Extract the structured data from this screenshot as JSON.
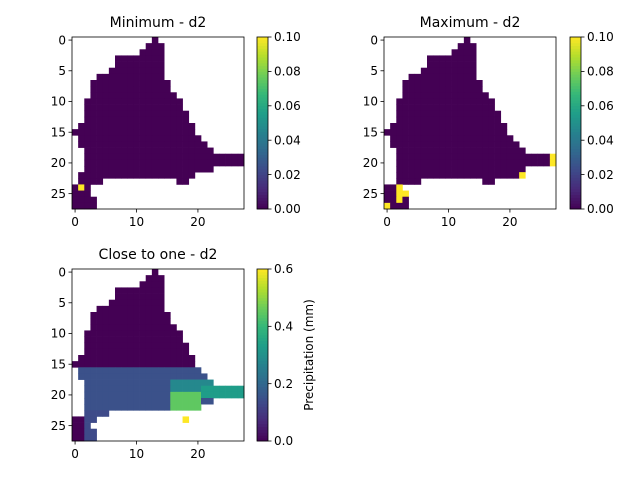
{
  "chart_data": [
    {
      "type": "heatmap",
      "title": "Minimum - d2",
      "grid_size": [
        28,
        28
      ],
      "xticks": [
        0,
        10,
        20
      ],
      "yticks": [
        0,
        5,
        10,
        15,
        20,
        25
      ],
      "colorbar": {
        "ticks": [
          "0.00",
          "0.02",
          "0.04",
          "0.06",
          "0.08",
          "0.10"
        ],
        "range": [
          0,
          0.1
        ],
        "label": ""
      },
      "cells": {
        "fill_value": 0.0,
        "highlights": [
          {
            "row": 24,
            "col": 1,
            "value": 0.1
          }
        ]
      }
    },
    {
      "type": "heatmap",
      "title": "Maximum - d2",
      "grid_size": [
        28,
        28
      ],
      "xticks": [
        0,
        10,
        20
      ],
      "yticks": [
        0,
        5,
        10,
        15,
        20,
        25
      ],
      "colorbar": {
        "ticks": [
          "0.00",
          "0.02",
          "0.04",
          "0.06",
          "0.08",
          "0.10"
        ],
        "range": [
          0,
          0.1
        ],
        "label": ""
      },
      "cells": {
        "fill_value": 0.0,
        "highlights": [
          {
            "row": 19,
            "col": 27,
            "value": 0.1
          },
          {
            "row": 20,
            "col": 27,
            "value": 0.1
          },
          {
            "row": 22,
            "col": 22,
            "value": 0.1
          },
          {
            "row": 24,
            "col": 2,
            "value": 0.1
          },
          {
            "row": 25,
            "col": 2,
            "value": 0.1
          },
          {
            "row": 25,
            "col": 3,
            "value": 0.1
          },
          {
            "row": 26,
            "col": 2,
            "value": 0.1
          },
          {
            "row": 27,
            "col": 0,
            "value": 0.1
          }
        ]
      }
    },
    {
      "type": "heatmap",
      "title": "Close to one - d2",
      "grid_size": [
        28,
        28
      ],
      "xticks": [
        0,
        10,
        20
      ],
      "yticks": [
        0,
        5,
        10,
        15,
        20,
        25
      ],
      "colorbar": {
        "ticks": [
          "0.0",
          "0.2",
          "0.4",
          "0.6"
        ],
        "range": [
          0,
          0.6
        ],
        "label": "Precipitation (mm)"
      },
      "cells": {
        "fill_value": 0.0,
        "band_values": {
          "upper": 0.0,
          "middle": 0.15,
          "east_tail": 0.33,
          "south_east": 0.45,
          "peak": 0.6
        },
        "highlights": [
          {
            "row": 24,
            "col": 18,
            "value": 0.6
          }
        ]
      }
    }
  ]
}
